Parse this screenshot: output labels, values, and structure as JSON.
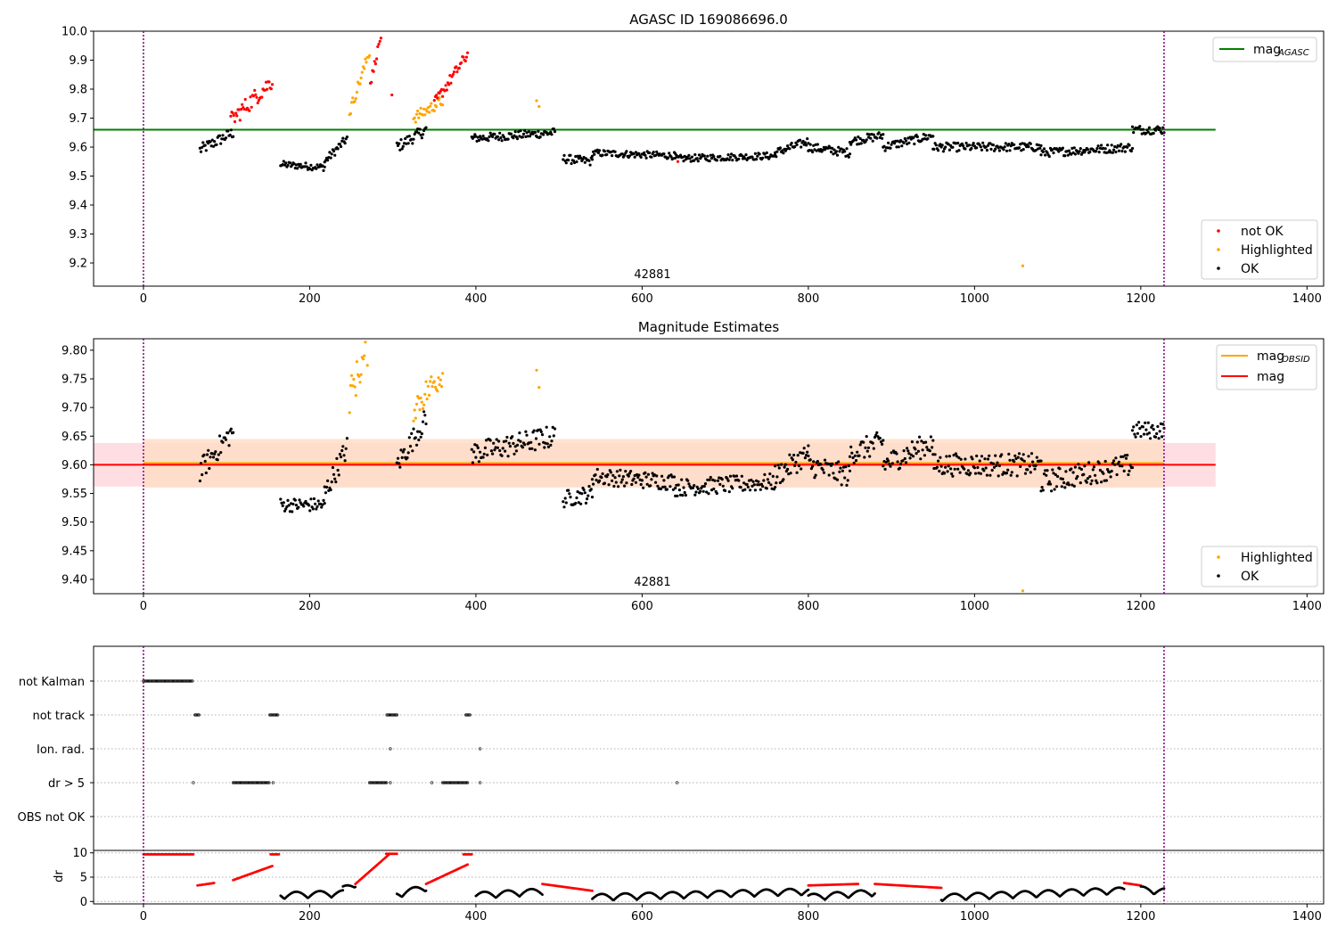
{
  "figure": {
    "panels": [
      {
        "id": "top",
        "title": "AGASC ID 169086696.0",
        "obsid_label": "42881",
        "xlim": [
          -60,
          1420
        ],
        "ylim": [
          9.12,
          10.0
        ],
        "xticks": [
          0,
          200,
          400,
          600,
          800,
          1000,
          1200,
          1400
        ],
        "yticks": [
          "9.2",
          "9.3",
          "9.4",
          "9.5",
          "9.6",
          "9.7",
          "9.8",
          "9.9",
          "10.0"
        ],
        "line_legend": [
          {
            "label": "mag",
            "sub": "AGASC",
            "color": "#008000"
          }
        ],
        "point_legend": [
          {
            "label": "not OK",
            "color": "#ff0000"
          },
          {
            "label": "Highlighted",
            "color": "#ffa500"
          },
          {
            "label": "OK",
            "color": "#000000"
          }
        ]
      },
      {
        "id": "middle",
        "title": "Magnitude Estimates",
        "obsid_label": "42881",
        "xlim": [
          -60,
          1420
        ],
        "ylim": [
          9.375,
          9.82
        ],
        "xticks": [
          0,
          200,
          400,
          600,
          800,
          1000,
          1200,
          1400
        ],
        "yticks": [
          "9.40",
          "9.45",
          "9.50",
          "9.55",
          "9.60",
          "9.65",
          "9.70",
          "9.75",
          "9.80"
        ],
        "line_legend": [
          {
            "label": "mag",
            "sub": "OBSID",
            "color": "#ffa500"
          },
          {
            "label": "mag",
            "sub": "",
            "color": "#ff0000"
          }
        ],
        "point_legend": [
          {
            "label": "Highlighted",
            "color": "#ffa500"
          },
          {
            "label": "OK",
            "color": "#000000"
          }
        ]
      },
      {
        "id": "flags",
        "categories": [
          "not Kalman",
          "not track",
          "Ion. rad.",
          "dr > 5",
          "OBS not OK"
        ]
      },
      {
        "id": "dr",
        "ylabel": "dr",
        "xlim": [
          -60,
          1420
        ],
        "ylim": [
          -0.5,
          10.5
        ],
        "xticks": [
          0,
          200,
          400,
          600,
          800,
          1000,
          1200,
          1400
        ],
        "yticks": [
          "0",
          "5",
          "10"
        ]
      }
    ]
  },
  "chart_data": [
    {
      "type": "scatter",
      "title": "AGASC ID 169086696.0",
      "xlabel": "",
      "ylabel": "",
      "xlim": [
        -60,
        1420
      ],
      "ylim": [
        9.12,
        10.0
      ],
      "hlines": [
        {
          "name": "mag_AGASC",
          "y": 9.66,
          "x_range": [
            -60,
            1290
          ]
        }
      ],
      "vlines": [
        0,
        1228
      ],
      "series": [
        {
          "name": "OK",
          "color": "#000000",
          "segments": [
            {
              "x0": 68,
              "x1": 108,
              "y0": 9.59,
              "y1": 9.65,
              "noise": 0.02
            },
            {
              "x0": 165,
              "x1": 218,
              "y0": 9.54,
              "y1": 9.53,
              "noise": 0.012
            },
            {
              "x0": 218,
              "x1": 245,
              "y0": 9.55,
              "y1": 9.63,
              "noise": 0.015
            },
            {
              "x0": 305,
              "x1": 340,
              "y0": 9.6,
              "y1": 9.66,
              "noise": 0.02
            },
            {
              "x0": 395,
              "x1": 495,
              "y0": 9.63,
              "y1": 9.65,
              "noise": 0.015
            },
            {
              "x0": 505,
              "x1": 540,
              "y0": 9.56,
              "y1": 9.55,
              "noise": 0.015
            },
            {
              "x0": 540,
              "x1": 640,
              "y0": 9.58,
              "y1": 9.57,
              "noise": 0.012
            },
            {
              "x0": 640,
              "x1": 760,
              "y0": 9.56,
              "y1": 9.57,
              "noise": 0.012
            },
            {
              "x0": 760,
              "x1": 800,
              "y0": 9.58,
              "y1": 9.62,
              "noise": 0.015
            },
            {
              "x0": 800,
              "x1": 850,
              "y0": 9.6,
              "y1": 9.58,
              "noise": 0.015
            },
            {
              "x0": 850,
              "x1": 890,
              "y0": 9.62,
              "y1": 9.64,
              "noise": 0.015
            },
            {
              "x0": 890,
              "x1": 950,
              "y0": 9.6,
              "y1": 9.64,
              "noise": 0.015
            },
            {
              "x0": 950,
              "x1": 1080,
              "y0": 9.6,
              "y1": 9.6,
              "noise": 0.015
            },
            {
              "x0": 1080,
              "x1": 1190,
              "y0": 9.58,
              "y1": 9.6,
              "noise": 0.015
            },
            {
              "x0": 1190,
              "x1": 1228,
              "y0": 9.66,
              "y1": 9.66,
              "noise": 0.015
            }
          ]
        },
        {
          "name": "Highlighted",
          "color": "#ffa500",
          "segments": [
            {
              "x0": 248,
              "x1": 272,
              "y0": 9.72,
              "y1": 9.93,
              "noise": 0.02
            },
            {
              "x0": 325,
              "x1": 360,
              "y0": 9.7,
              "y1": 9.76,
              "noise": 0.02
            }
          ],
          "points": [
            [
              473,
              9.76
            ],
            [
              476,
              9.74
            ],
            [
              1058,
              9.19
            ]
          ]
        },
        {
          "name": "not OK",
          "color": "#ff0000",
          "segments": [
            {
              "x0": 105,
              "x1": 155,
              "y0": 9.69,
              "y1": 9.83,
              "noise": 0.03
            },
            {
              "x0": 273,
              "x1": 287,
              "y0": 9.82,
              "y1": 10.0,
              "noise": 0.015
            },
            {
              "x0": 350,
              "x1": 390,
              "y0": 9.75,
              "y1": 9.92,
              "noise": 0.02
            }
          ],
          "points": [
            [
              299,
              9.78
            ],
            [
              643,
              9.55
            ]
          ]
        }
      ]
    },
    {
      "type": "scatter",
      "title": "Magnitude Estimates",
      "xlim": [
        -60,
        1420
      ],
      "ylim": [
        9.375,
        9.82
      ],
      "hlines": [
        {
          "name": "mag_OBSID",
          "y": 9.603,
          "x_range": [
            0,
            1228
          ],
          "band": [
            9.56,
            9.645
          ],
          "band_color": "#ffdcc4"
        },
        {
          "name": "mag",
          "y": 9.6,
          "x_range": [
            -60,
            1290
          ],
          "band": [
            9.562,
            9.638
          ],
          "band_color": "#ffc8d0"
        }
      ],
      "vlines": [
        0,
        1228
      ],
      "series": [
        {
          "name": "OK",
          "color": "#000000",
          "segments": [
            {
              "x0": 68,
              "x1": 108,
              "y0": 9.59,
              "y1": 9.66,
              "noise": 0.02
            },
            {
              "x0": 165,
              "x1": 218,
              "y0": 9.53,
              "y1": 9.53,
              "noise": 0.012
            },
            {
              "x0": 218,
              "x1": 245,
              "y0": 9.55,
              "y1": 9.63,
              "noise": 0.02
            },
            {
              "x0": 305,
              "x1": 340,
              "y0": 9.6,
              "y1": 9.68,
              "noise": 0.02
            },
            {
              "x0": 395,
              "x1": 495,
              "y0": 9.62,
              "y1": 9.65,
              "noise": 0.02
            },
            {
              "x0": 505,
              "x1": 540,
              "y0": 9.54,
              "y1": 9.55,
              "noise": 0.015
            },
            {
              "x0": 540,
              "x1": 640,
              "y0": 9.58,
              "y1": 9.57,
              "noise": 0.015
            },
            {
              "x0": 640,
              "x1": 760,
              "y0": 9.56,
              "y1": 9.57,
              "noise": 0.015
            },
            {
              "x0": 760,
              "x1": 800,
              "y0": 9.58,
              "y1": 9.62,
              "noise": 0.02
            },
            {
              "x0": 800,
              "x1": 850,
              "y0": 9.6,
              "y1": 9.58,
              "noise": 0.02
            },
            {
              "x0": 850,
              "x1": 890,
              "y0": 9.62,
              "y1": 9.64,
              "noise": 0.02
            },
            {
              "x0": 890,
              "x1": 950,
              "y0": 9.6,
              "y1": 9.64,
              "noise": 0.02
            },
            {
              "x0": 950,
              "x1": 1080,
              "y0": 9.6,
              "y1": 9.6,
              "noise": 0.02
            },
            {
              "x0": 1080,
              "x1": 1190,
              "y0": 9.57,
              "y1": 9.6,
              "noise": 0.02
            },
            {
              "x0": 1190,
              "x1": 1228,
              "y0": 9.66,
              "y1": 9.66,
              "noise": 0.015
            }
          ]
        },
        {
          "name": "Highlighted",
          "color": "#ffa500",
          "segments": [
            {
              "x0": 248,
              "x1": 272,
              "y0": 9.72,
              "y1": 9.81,
              "noise": 0.03
            },
            {
              "x0": 325,
              "x1": 360,
              "y0": 9.7,
              "y1": 9.76,
              "noise": 0.025
            }
          ],
          "points": [
            [
              473,
              9.765
            ],
            [
              476,
              9.735
            ],
            [
              1058,
              9.38
            ]
          ]
        }
      ]
    },
    {
      "type": "scatter",
      "title": "",
      "categories": [
        "not Kalman",
        "not track",
        "Ion. rad.",
        "dr > 5",
        "OBS not OK"
      ],
      "xlim": [
        -60,
        1420
      ],
      "series": [
        {
          "category": "not Kalman",
          "ranges": [
            [
              0,
              60
            ]
          ]
        },
        {
          "category": "not track",
          "ranges": [
            [
              62,
              67
            ],
            [
              152,
              162
            ],
            [
              293,
              305
            ],
            [
              388,
              393
            ]
          ]
        },
        {
          "category": "Ion. rad.",
          "ranges": [
            [
              297,
              297
            ],
            [
              405,
              405
            ]
          ]
        },
        {
          "category": "dr > 5",
          "ranges": [
            [
              60,
              60
            ],
            [
              108,
              152
            ],
            [
              156,
              156
            ],
            [
              272,
              293
            ],
            [
              297,
              297
            ],
            [
              347,
              347
            ],
            [
              360,
              390
            ],
            [
              405,
              405
            ],
            [
              642,
              642
            ]
          ]
        },
        {
          "category": "OBS not OK",
          "ranges": []
        }
      ]
    },
    {
      "type": "scatter",
      "ylabel": "dr",
      "xlim": [
        -60,
        1420
      ],
      "ylim": [
        -0.5,
        10.5
      ],
      "series": [
        {
          "name": "dr > 5 region",
          "color": "#ff0000",
          "segments": [
            {
              "x0": 0,
              "x1": 60,
              "y0": 9.7,
              "y1": 9.7
            },
            {
              "x0": 65,
              "x1": 85,
              "y0": 3.3,
              "y1": 3.8
            },
            {
              "x0": 108,
              "x1": 155,
              "y0": 4.4,
              "y1": 7.3
            },
            {
              "x0": 153,
              "x1": 163,
              "y0": 9.7,
              "y1": 9.7
            },
            {
              "x0": 255,
              "x1": 295,
              "y0": 3.6,
              "y1": 9.6
            },
            {
              "x0": 292,
              "x1": 305,
              "y0": 9.8,
              "y1": 9.8
            },
            {
              "x0": 340,
              "x1": 390,
              "y0": 3.6,
              "y1": 7.6
            },
            {
              "x0": 385,
              "x1": 395,
              "y0": 9.7,
              "y1": 9.7
            },
            {
              "x0": 480,
              "x1": 540,
              "y0": 3.6,
              "y1": 2.2
            },
            {
              "x0": 800,
              "x1": 860,
              "y0": 3.3,
              "y1": 3.6
            },
            {
              "x0": 880,
              "x1": 960,
              "y0": 3.6,
              "y1": 2.8
            },
            {
              "x0": 1180,
              "x1": 1200,
              "y0": 3.8,
              "y1": 3.3
            }
          ]
        },
        {
          "name": "OK",
          "color": "#000000",
          "segments": [
            {
              "x0": 165,
              "x1": 240,
              "y0": 1.0,
              "y1": 1.4
            },
            {
              "x0": 240,
              "x1": 255,
              "y0": 2.2,
              "y1": 3.4
            },
            {
              "x0": 305,
              "x1": 340,
              "y0": 1.2,
              "y1": 2.6
            },
            {
              "x0": 400,
              "x1": 480,
              "y0": 1.0,
              "y1": 1.8
            },
            {
              "x0": 540,
              "x1": 800,
              "y0": 0.6,
              "y1": 1.8
            },
            {
              "x0": 800,
              "x1": 880,
              "y0": 0.6,
              "y1": 1.6
            },
            {
              "x0": 960,
              "x1": 1180,
              "y0": 0.6,
              "y1": 2.0
            },
            {
              "x0": 1200,
              "x1": 1228,
              "y0": 2.2,
              "y1": 1.8
            }
          ]
        }
      ]
    }
  ]
}
